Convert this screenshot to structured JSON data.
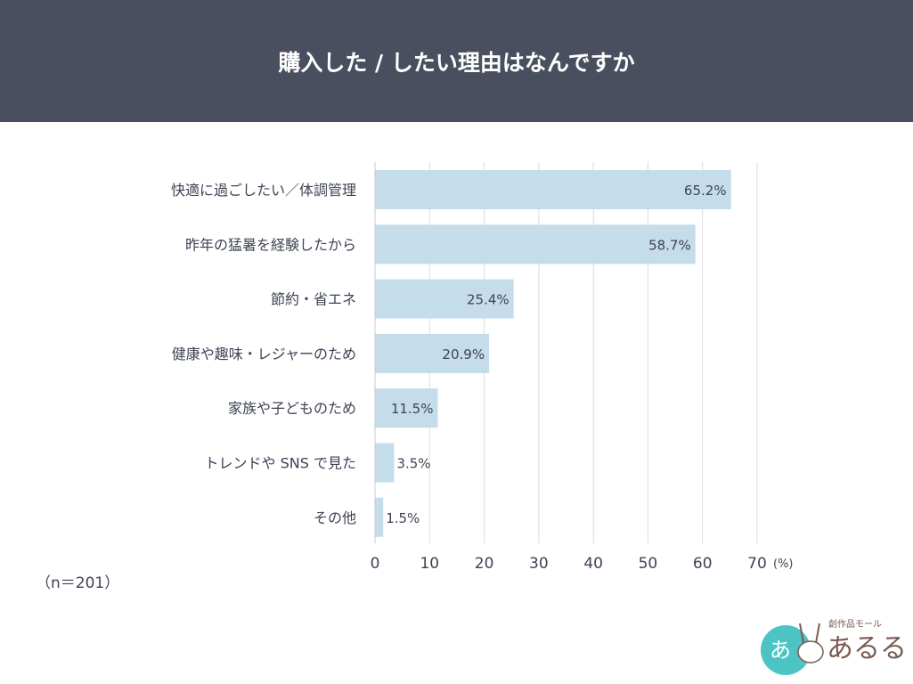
{
  "chart_data": {
    "type": "bar",
    "orientation": "horizontal",
    "title": "購入した / したい理由はなんですか",
    "categories": [
      "快適に過ごしたい／体調管理",
      "昨年の猛暑を経験したから",
      "節約・省エネ",
      "健康や趣味・レジャーのため",
      "家族や子どものため",
      "トレンドや SNS で見た",
      "その他"
    ],
    "values": [
      65.2,
      58.7,
      25.4,
      20.9,
      11.5,
      3.5,
      1.5
    ],
    "data_labels": [
      "65.2%",
      "58.7%",
      "25.4%",
      "20.9%",
      "11.5%",
      "3.5%",
      "1.5%"
    ],
    "xlim": [
      0,
      70
    ],
    "ticks": [
      "0",
      "10",
      "20",
      "30",
      "40",
      "50",
      "60",
      "70"
    ],
    "xunit": "(%)",
    "grid": true,
    "bar_color": "#c5dcea",
    "note": "（n＝201）"
  },
  "logo": {
    "text": "あるる",
    "subtitle": "創作品モール"
  }
}
